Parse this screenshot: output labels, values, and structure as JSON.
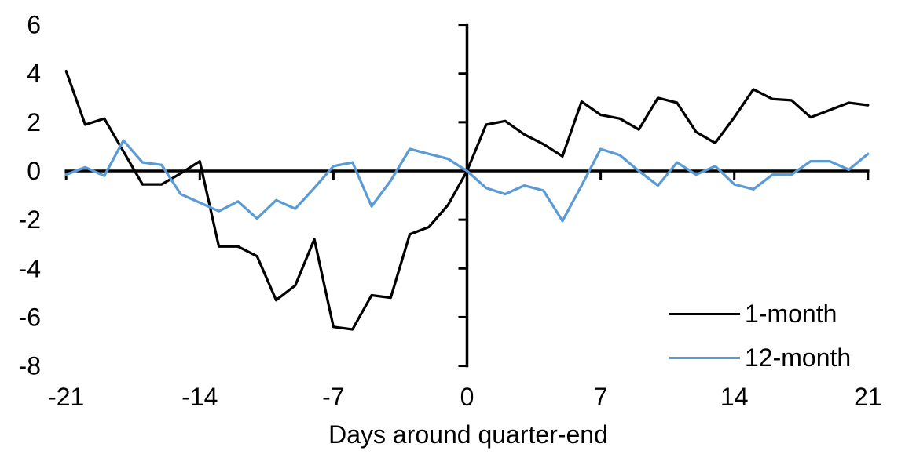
{
  "chart_data": {
    "type": "line",
    "title": "",
    "xlabel": "Days around quarter-end",
    "ylabel": "",
    "xlim": [
      -21,
      21
    ],
    "ylim": [
      -8,
      6
    ],
    "x_ticks": [
      -21,
      -14,
      -7,
      0,
      7,
      14,
      21
    ],
    "y_ticks": [
      6,
      4,
      2,
      0,
      -2,
      -4,
      -6,
      -8
    ],
    "grid": false,
    "axes_cross_at": [
      0,
      0
    ],
    "legend_position": "inside-bottom-right",
    "axis_color": "#000000",
    "x": [
      -21,
      -20,
      -19,
      -18,
      -17,
      -16,
      -15,
      -14,
      -13,
      -12,
      -11,
      -10,
      -9,
      -8,
      -7,
      -6,
      -5,
      -4,
      -3,
      -2,
      -1,
      0,
      1,
      2,
      3,
      4,
      5,
      6,
      7,
      8,
      9,
      10,
      11,
      12,
      13,
      14,
      15,
      16,
      17,
      18,
      19,
      20,
      21
    ],
    "series": [
      {
        "name": "1-month",
        "color": "#000000",
        "values": [
          4.1,
          1.9,
          2.15,
          0.8,
          -0.55,
          -0.55,
          -0.1,
          0.4,
          -3.1,
          -3.1,
          -3.5,
          -5.3,
          -4.7,
          -2.8,
          -6.4,
          -6.5,
          -5.1,
          -5.2,
          -2.6,
          -2.3,
          -1.4,
          0,
          1.9,
          2.05,
          1.5,
          1.1,
          0.6,
          2.85,
          2.3,
          2.15,
          1.7,
          3.0,
          2.8,
          1.6,
          1.15,
          2.2,
          3.35,
          2.95,
          2.9,
          2.2,
          2.5,
          2.8,
          2.7
        ]
      },
      {
        "name": "12-month",
        "color": "#5B9BD5",
        "values": [
          -0.15,
          0.15,
          -0.2,
          1.25,
          0.35,
          0.25,
          -0.95,
          -1.3,
          -1.65,
          -1.25,
          -1.95,
          -1.2,
          -1.55,
          -0.7,
          0.2,
          0.35,
          -1.45,
          -0.4,
          0.9,
          0.7,
          0.5,
          0,
          -0.7,
          -0.95,
          -0.6,
          -0.8,
          -2.05,
          -0.6,
          0.9,
          0.65,
          0,
          -0.6,
          0.35,
          -0.15,
          0.2,
          -0.55,
          -0.75,
          -0.15,
          -0.15,
          0.4,
          0.4,
          0.05,
          0.7
        ]
      }
    ]
  }
}
